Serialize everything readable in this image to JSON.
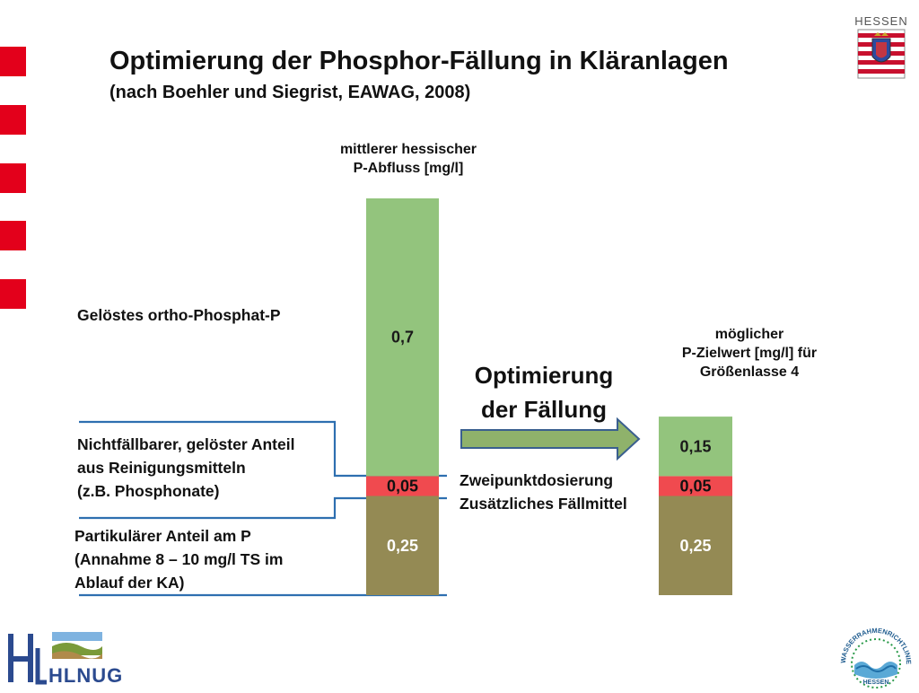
{
  "title": "Optimierung der Phosphor-Fällung in Kläranlagen",
  "subtitle": "(nach Boehler und Siegrist, EAWAG, 2008)",
  "left_header": [
    "mittlerer hessischer",
    "P-Abfluss [mg/l]"
  ],
  "right_header": [
    "möglicher",
    "P-Zielwert [mg/l] für",
    "Größenlasse 4"
  ],
  "labels": {
    "orthophosphate": "Gelöstes ortho-Phosphat-P",
    "nonprecipitable": [
      "Nichtfällbarer, gelöster Anteil",
      "aus Reinigungsmitteln",
      "(z.B. Phosphonate)"
    ],
    "particulate": [
      "Partikulärer Anteil am P",
      "(Annahme 8 – 10 mg/l TS im",
      "Ablauf der KA)"
    ]
  },
  "optimization": [
    "Optimierung",
    "der Fällung"
  ],
  "measures": [
    "Zweipunktdosierung",
    "Zusätzliches Fällmittel"
  ],
  "logos": {
    "state_name": "HESSEN",
    "agency": "HLNUG",
    "wfd_ring": "WASSERRAHMENRICHTLINIE",
    "wfd_state": "HESSEN"
  },
  "colors": {
    "accent_red": "#e3001b",
    "green": "#93c47d",
    "red": "#f04a4f",
    "brown": "#948a54",
    "arrow_fill": "#8fb26b",
    "arrow_stroke": "#3a5f8f",
    "leader": "#2e6fb0"
  },
  "chart_data": {
    "type": "bar",
    "stacked": true,
    "categories": [
      "mittlerer hessischer P-Abfluss [mg/l]",
      "möglicher P-Zielwert [mg/l] für Größenlasse 4"
    ],
    "series": [
      {
        "name": "Partikulärer Anteil am P",
        "values": [
          0.25,
          0.25
        ],
        "labels": [
          "0,25",
          "0,25"
        ],
        "color": "#948a54"
      },
      {
        "name": "Nichtfällbarer, gelöster Anteil",
        "values": [
          0.05,
          0.05
        ],
        "labels": [
          "0,05",
          "0,05"
        ],
        "color": "#f04a4f"
      },
      {
        "name": "Gelöstes ortho-Phosphat-P",
        "values": [
          0.7,
          0.15
        ],
        "labels": [
          "0,7",
          "0,15"
        ],
        "color": "#93c47d"
      }
    ]
  }
}
